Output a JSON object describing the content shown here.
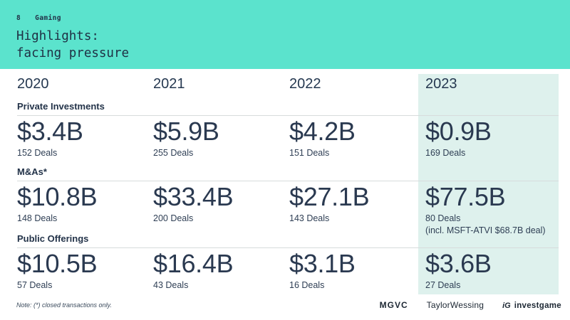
{
  "colors": {
    "header_bg": "#5be3cd",
    "highlight_bg": "#def1ed",
    "text": "#2a3950",
    "rule": "#d7dcdc"
  },
  "header": {
    "page_number": "8",
    "section": "Gaming",
    "title_line1": "Highlights:",
    "title_line2": "facing pressure"
  },
  "table": {
    "years": [
      "2020",
      "2021",
      "2022",
      "2023"
    ],
    "highlighted_year": "2023",
    "sections": [
      {
        "label": "Private Investments",
        "cells": [
          {
            "value": "$3.4B",
            "deals": "152 Deals"
          },
          {
            "value": "$5.9B",
            "deals": "255 Deals"
          },
          {
            "value": "$4.2B",
            "deals": "151 Deals"
          },
          {
            "value": "$0.9B",
            "deals": "169 Deals"
          }
        ]
      },
      {
        "label": "M&As*",
        "cells": [
          {
            "value": "$10.8B",
            "deals": "148 Deals"
          },
          {
            "value": "$33.4B",
            "deals": "200 Deals"
          },
          {
            "value": "$27.1B",
            "deals": "143 Deals"
          },
          {
            "value": "$77.5B",
            "deals": "80 Deals",
            "note": "(incl. MSFT-ATVI $68.7B deal)"
          }
        ]
      },
      {
        "label": "Public Offerings",
        "cells": [
          {
            "value": "$10.5B",
            "deals": "57 Deals"
          },
          {
            "value": "$16.4B",
            "deals": "43 Deals"
          },
          {
            "value": "$3.1B",
            "deals": "16 Deals"
          },
          {
            "value": "$3.6B",
            "deals": "27 Deals"
          }
        ]
      }
    ]
  },
  "footer": {
    "note": "Note: (*) closed transactions only.",
    "logos": {
      "mgvc": "MGVC",
      "taylor_wessing": "TaylorWessing",
      "investgame_mark": "iG",
      "investgame": "investgame"
    }
  }
}
